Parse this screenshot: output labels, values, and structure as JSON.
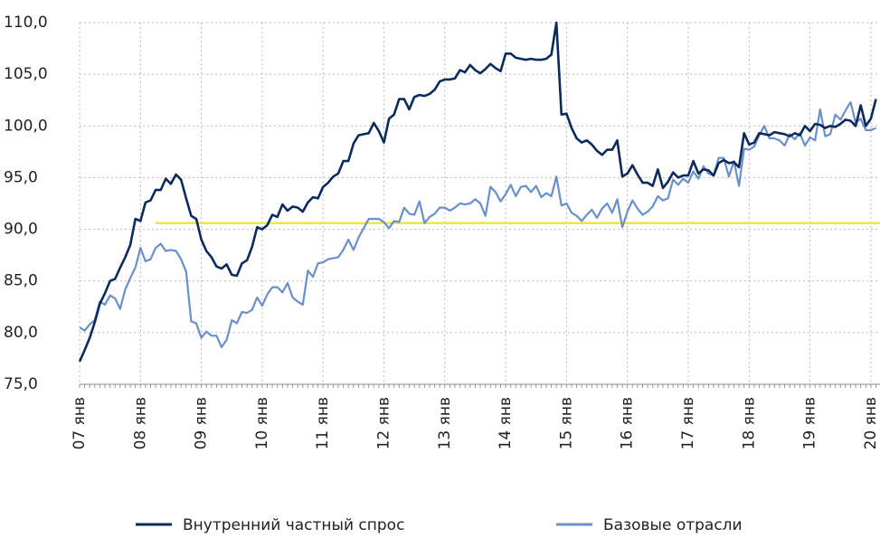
{
  "chart_data": {
    "type": "line",
    "categories": [
      "07 янв",
      null,
      null,
      null,
      null,
      null,
      null,
      null,
      null,
      null,
      null,
      null,
      "08 янв",
      null,
      null,
      null,
      null,
      null,
      null,
      null,
      null,
      null,
      null,
      null,
      "09 янв",
      null,
      null,
      null,
      null,
      null,
      null,
      null,
      null,
      null,
      null,
      null,
      "10 янв",
      null,
      null,
      null,
      null,
      null,
      null,
      null,
      null,
      null,
      null,
      null,
      "11 янв",
      null,
      null,
      null,
      null,
      null,
      null,
      null,
      null,
      null,
      null,
      null,
      "12 янв",
      null,
      null,
      null,
      null,
      null,
      null,
      null,
      null,
      null,
      null,
      null,
      "13 янв",
      null,
      null,
      null,
      null,
      null,
      null,
      null,
      null,
      null,
      null,
      null,
      "14 янв",
      null,
      null,
      null,
      null,
      null,
      null,
      null,
      null,
      null,
      null,
      null,
      "15 янв",
      null,
      null,
      null,
      null,
      null,
      null,
      null,
      null,
      null,
      null,
      null,
      "16 янв",
      null,
      null,
      null,
      null,
      null,
      null,
      null,
      null,
      null,
      null,
      null,
      "17 янв",
      null,
      null,
      null,
      null,
      null,
      null,
      null,
      null,
      null,
      null,
      null,
      "18 янв",
      null,
      null,
      null,
      null,
      null,
      null,
      null,
      null,
      null,
      null,
      null,
      "19 янв",
      null,
      null,
      null,
      null,
      null,
      null,
      null,
      null,
      null,
      null,
      null,
      "20 янв",
      null
    ],
    "series": [
      {
        "name": "Внутренний частный спрос",
        "color": "#0d2a5c",
        "values": [
          77.2,
          78.3,
          79.5,
          81.0,
          82.8,
          83.8,
          85.0,
          85.2,
          86.3,
          87.3,
          88.5,
          91.0,
          90.8,
          92.6,
          92.8,
          93.8,
          93.8,
          94.9,
          94.4,
          95.3,
          94.8,
          93.0,
          91.3,
          91.0,
          89.0,
          87.9,
          87.3,
          86.4,
          86.2,
          86.6,
          85.6,
          85.5,
          86.7,
          87.0,
          88.3,
          90.2,
          90.0,
          90.4,
          91.4,
          91.2,
          92.4,
          91.8,
          92.2,
          92.1,
          91.7,
          92.6,
          93.1,
          93.0,
          94.1,
          94.5,
          95.1,
          95.4,
          96.6,
          96.6,
          98.3,
          99.1,
          99.2,
          99.3,
          100.3,
          99.5,
          98.4,
          100.7,
          101.1,
          102.6,
          102.6,
          101.6,
          102.8,
          103.0,
          102.9,
          103.1,
          103.5,
          104.3,
          104.5,
          104.5,
          104.6,
          105.4,
          105.2,
          105.9,
          105.4,
          105.1,
          105.5,
          106.0,
          105.6,
          105.3,
          107.0,
          107.0,
          106.6,
          106.5,
          106.4,
          106.5,
          106.4,
          106.4,
          106.5,
          106.9,
          110.0,
          101.1,
          101.2,
          99.8,
          98.8,
          98.4,
          98.6,
          98.2,
          97.6,
          97.2,
          97.7,
          97.7,
          98.6,
          95.1,
          95.4,
          96.2,
          95.3,
          94.5,
          94.5,
          94.2,
          95.8,
          94.0,
          94.6,
          95.5,
          95.0,
          95.2,
          95.2,
          96.6,
          95.4,
          95.8,
          95.7,
          95.2,
          96.4,
          96.7,
          96.4,
          96.5,
          96.0,
          99.3,
          98.2,
          98.4,
          99.3,
          99.2,
          99.1,
          99.4,
          99.3,
          99.2,
          99.0,
          99.3,
          99.1,
          100.0,
          99.5,
          100.2,
          100.1,
          99.8,
          100.0,
          99.9,
          100.2,
          100.6,
          100.5,
          100.0,
          102.0,
          100.0,
          100.7,
          102.6
        ]
      },
      {
        "name": "Базовые отрасли",
        "color": "#6a8fcb",
        "values": [
          80.5,
          80.2,
          80.8,
          81.2,
          83.0,
          82.7,
          83.6,
          83.3,
          82.3,
          84.2,
          85.3,
          86.3,
          88.2,
          86.9,
          87.1,
          88.2,
          88.6,
          87.9,
          88.0,
          87.9,
          87.1,
          85.9,
          81.1,
          80.9,
          79.5,
          80.1,
          79.7,
          79.7,
          78.6,
          79.3,
          81.2,
          80.9,
          82.0,
          81.9,
          82.2,
          83.4,
          82.6,
          83.7,
          84.4,
          84.4,
          83.9,
          84.8,
          83.4,
          83.0,
          82.7,
          86.0,
          85.4,
          86.7,
          86.8,
          87.1,
          87.2,
          87.3,
          88.0,
          89.0,
          88.0,
          89.2,
          90.1,
          91.0,
          91.0,
          91.0,
          90.7,
          90.1,
          90.8,
          90.7,
          92.1,
          91.5,
          91.4,
          92.7,
          90.6,
          91.2,
          91.5,
          92.1,
          92.1,
          91.8,
          92.1,
          92.5,
          92.4,
          92.5,
          92.9,
          92.5,
          91.3,
          94.1,
          93.6,
          92.7,
          93.4,
          94.3,
          93.2,
          94.1,
          94.2,
          93.6,
          94.2,
          93.1,
          93.5,
          93.2,
          95.1,
          92.3,
          92.5,
          91.6,
          91.3,
          90.8,
          91.4,
          91.9,
          91.1,
          92.0,
          92.5,
          91.6,
          92.9,
          90.2,
          91.7,
          92.8,
          92.0,
          91.4,
          91.7,
          92.2,
          93.2,
          92.8,
          93.0,
          94.8,
          94.3,
          94.9,
          94.5,
          95.6,
          94.9,
          96.1,
          95.4,
          95.2,
          96.9,
          96.9,
          95.1,
          96.6,
          94.2,
          97.8,
          97.7,
          98.0,
          99.1,
          100.0,
          98.8,
          98.8,
          98.6,
          98.1,
          99.2,
          98.7,
          99.3,
          98.1,
          98.9,
          98.6,
          101.6,
          99.0,
          99.2,
          101.1,
          100.6,
          101.5,
          102.3,
          100.3,
          100.7,
          99.6,
          99.6,
          99.8
        ]
      }
    ],
    "hline": {
      "value": 90.6,
      "start": 15,
      "color": "#f2e640"
    },
    "ylim": [
      75,
      110
    ],
    "yticks": [
      {
        "value": 75,
        "label": "75,0"
      },
      {
        "value": 80,
        "label": "80,0"
      },
      {
        "value": 85,
        "label": "85,0"
      },
      {
        "value": 90,
        "label": "90,0"
      },
      {
        "value": 95,
        "label": "95,0"
      },
      {
        "value": 100,
        "label": "100,0"
      },
      {
        "value": 105,
        "label": "105,0"
      },
      {
        "value": 110,
        "label": "110,0"
      }
    ],
    "grid": true,
    "legend": "bottom"
  }
}
